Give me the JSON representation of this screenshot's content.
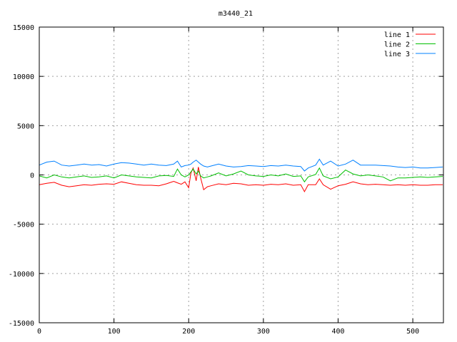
{
  "chart_data": {
    "type": "line",
    "title": "m3440_21",
    "xlabel": "",
    "ylabel": "",
    "xlim": [
      0,
      541
    ],
    "ylim": [
      -15000,
      15000
    ],
    "xticks": [
      0,
      100,
      200,
      300,
      400,
      500
    ],
    "yticks": [
      -15000,
      -10000,
      -5000,
      0,
      5000,
      10000,
      15000
    ],
    "grid": true,
    "legend_position": "top-right",
    "x": [
      0,
      10,
      20,
      30,
      40,
      50,
      60,
      70,
      80,
      90,
      100,
      110,
      120,
      130,
      140,
      150,
      160,
      170,
      180,
      185,
      190,
      195,
      200,
      203,
      206,
      210,
      213,
      216,
      220,
      225,
      230,
      240,
      250,
      260,
      270,
      280,
      290,
      300,
      310,
      320,
      330,
      340,
      350,
      355,
      360,
      370,
      375,
      380,
      390,
      400,
      410,
      420,
      430,
      440,
      450,
      460,
      470,
      480,
      490,
      500,
      510,
      520,
      530,
      540
    ],
    "series": [
      {
        "name": "line 1",
        "color": "#ff0000",
        "values": [
          -1000,
          -850,
          -750,
          -1050,
          -1200,
          -1100,
          -1000,
          -1050,
          -950,
          -900,
          -950,
          -700,
          -850,
          -1000,
          -1050,
          -1050,
          -1100,
          -900,
          -650,
          -800,
          -950,
          -700,
          -1300,
          200,
          700,
          -600,
          800,
          -300,
          -1500,
          -1200,
          -1100,
          -900,
          -1000,
          -850,
          -900,
          -1050,
          -1000,
          -1050,
          -950,
          -1000,
          -900,
          -1050,
          -1000,
          -1700,
          -1000,
          -1000,
          -400,
          -1000,
          -1450,
          -1100,
          -950,
          -700,
          -900,
          -1000,
          -950,
          -1000,
          -1050,
          -1000,
          -1050,
          -1000,
          -1050,
          -1050,
          -1000,
          -1000
        ]
      },
      {
        "name": "line 2",
        "color": "#00c000",
        "values": [
          -100,
          -300,
          0,
          -200,
          -300,
          -200,
          -100,
          -250,
          -200,
          -100,
          -300,
          0,
          -100,
          -200,
          -250,
          -300,
          -100,
          -50,
          -150,
          600,
          0,
          -200,
          0,
          300,
          600,
          100,
          400,
          -100,
          -300,
          -200,
          -100,
          200,
          -100,
          100,
          400,
          0,
          -100,
          -150,
          0,
          -100,
          100,
          -150,
          -100,
          -700,
          -200,
          50,
          700,
          -100,
          -400,
          -200,
          500,
          100,
          -100,
          0,
          -100,
          -200,
          -600,
          -300,
          -300,
          -250,
          -200,
          -250,
          -200,
          -150
        ]
      },
      {
        "name": "line 3",
        "color": "#0080ff",
        "values": [
          1000,
          1300,
          1400,
          1000,
          900,
          1000,
          1100,
          1000,
          1050,
          900,
          1100,
          1250,
          1200,
          1100,
          1000,
          1100,
          1000,
          950,
          1100,
          1400,
          800,
          950,
          1000,
          1100,
          1300,
          1500,
          1300,
          1100,
          900,
          800,
          900,
          1100,
          900,
          800,
          850,
          950,
          900,
          850,
          950,
          900,
          1000,
          900,
          850,
          400,
          700,
          1000,
          1600,
          1000,
          1400,
          900,
          1100,
          1500,
          1000,
          1000,
          1000,
          950,
          900,
          800,
          750,
          800,
          700,
          700,
          750,
          800
        ]
      }
    ]
  }
}
